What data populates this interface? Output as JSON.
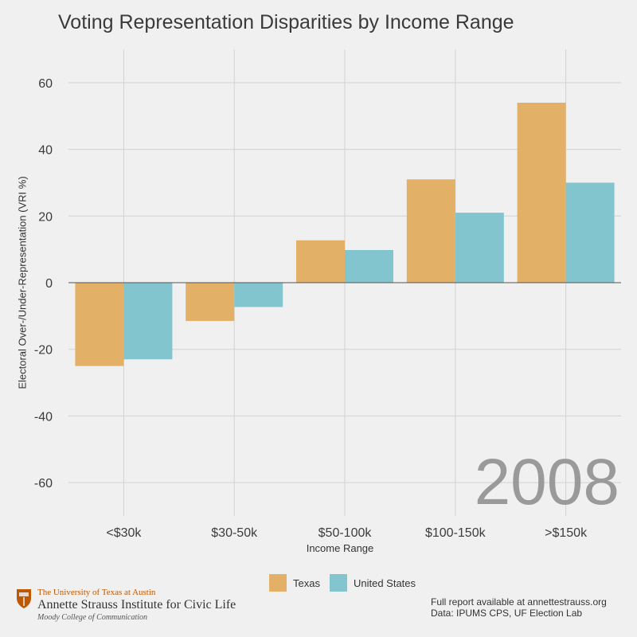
{
  "chart_data": {
    "type": "bar",
    "title": "Voting Representation Disparities by Income Range",
    "xlabel": "Income Range",
    "ylabel": "Electoral Over-/Under-Representation (VRI %)",
    "categories": [
      "<$30k",
      "$30-50k",
      "$50-100k",
      "$100-150k",
      ">$150k"
    ],
    "series": [
      {
        "name": "Texas",
        "values": [
          -25,
          -11.5,
          12.7,
          31,
          54
        ],
        "color": "#e3b067"
      },
      {
        "name": "United States",
        "values": [
          -23,
          -7.3,
          9.8,
          21,
          30
        ],
        "color": "#83c5cf"
      }
    ],
    "ylim": [
      -70,
      70
    ],
    "yticks": [
      -60,
      -40,
      -20,
      0,
      20,
      40,
      60
    ],
    "ytick_labels": [
      "-60",
      "-40",
      "-20",
      "0",
      "20",
      "40",
      "60"
    ],
    "grid": true,
    "legend_position": "bottom",
    "annotation": "2008"
  },
  "branding": {
    "university": "The University of Texas at Austin",
    "institute": "Annette Strauss Institute for Civic Life",
    "college": "Moody College of Communication"
  },
  "footer": {
    "report": "Full report available at annettestrauss.org",
    "data_source": "Data: IPUMS CPS, UF Election Lab"
  },
  "colors": {
    "background": "#f0f0f0",
    "grid": "#d2d2d2",
    "brand": "#bf5700"
  }
}
